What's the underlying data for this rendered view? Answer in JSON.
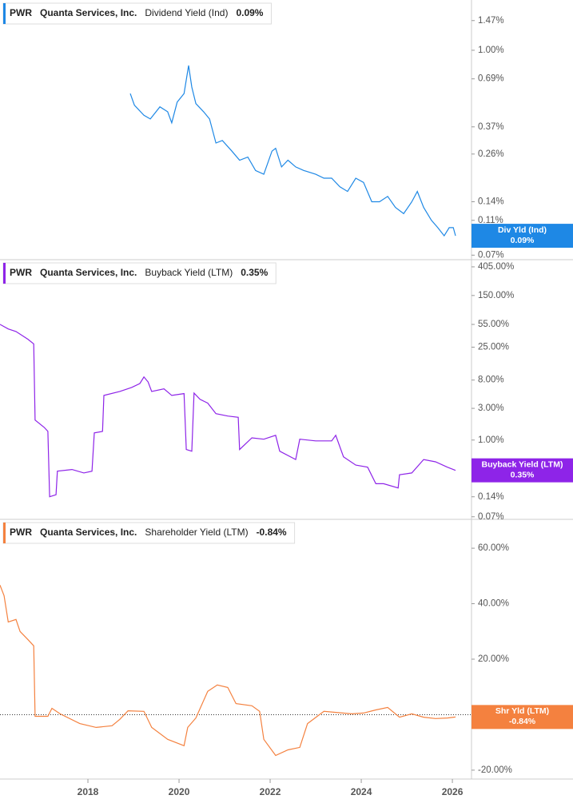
{
  "chart_data": [
    {
      "type": "line",
      "ticker": "PWR",
      "company": "Quanta Services, Inc.",
      "flag_label": "Div Yld (Ind)",
      "current": {
        "value": 0.09,
        "label": "0.09%"
      },
      "log_scale": true,
      "zero_line": false,
      "xlim": [
        2016.07,
        2026.42
      ],
      "ylim": [
        0.066,
        1.92
      ],
      "yticks": [
        {
          "value": 1.47,
          "label": "1.47%"
        },
        {
          "value": 1.0,
          "label": "1.00%"
        },
        {
          "value": 0.69,
          "label": "0.69%"
        },
        {
          "value": 0.37,
          "label": "0.37%"
        },
        {
          "value": 0.26,
          "label": "0.26%"
        },
        {
          "value": 0.14,
          "label": "0.14%"
        },
        {
          "value": 0.11,
          "label": "0.11%"
        },
        {
          "value": 0.07,
          "label": "0.07%"
        }
      ],
      "x": [
        2018.93,
        2019.02,
        2019.23,
        2019.37,
        2019.58,
        2019.75,
        2019.84,
        2019.96,
        2020.11,
        2020.21,
        2020.28,
        2020.37,
        2020.54,
        2020.67,
        2020.81,
        2020.95,
        2021.16,
        2021.33,
        2021.51,
        2021.68,
        2021.86,
        2022.04,
        2022.12,
        2022.25,
        2022.39,
        2022.56,
        2022.74,
        2023.0,
        2023.18,
        2023.35,
        2023.53,
        2023.7,
        2023.88,
        2024.05,
        2024.23,
        2024.4,
        2024.58,
        2024.75,
        2024.93,
        2025.11,
        2025.23,
        2025.37,
        2025.54,
        2025.68,
        2025.82,
        2025.93,
        2026.02,
        2026.07
      ],
      "series": [
        {
          "name": "Dividend Yield (Ind)",
          "color": "#1e88e5",
          "values": [
            0.57,
            0.49,
            0.43,
            0.41,
            0.48,
            0.45,
            0.39,
            0.51,
            0.57,
            0.82,
            0.62,
            0.5,
            0.45,
            0.41,
            0.3,
            0.31,
            0.27,
            0.24,
            0.25,
            0.21,
            0.2,
            0.27,
            0.28,
            0.22,
            0.24,
            0.22,
            0.21,
            0.2,
            0.19,
            0.19,
            0.17,
            0.16,
            0.19,
            0.18,
            0.14,
            0.14,
            0.15,
            0.13,
            0.12,
            0.14,
            0.16,
            0.13,
            0.11,
            0.1,
            0.09,
            0.1,
            0.1,
            0.09
          ]
        }
      ]
    },
    {
      "type": "line",
      "ticker": "PWR",
      "company": "Quanta Services, Inc.",
      "flag_label": "Buyback Yield (LTM)",
      "current": {
        "value": 0.35,
        "label": "0.35%"
      },
      "log_scale": true,
      "zero_line": false,
      "xlim": [
        2016.07,
        2026.42
      ],
      "ylim": [
        0.064,
        519
      ],
      "yticks": [
        {
          "value": 405,
          "label": "405.00%"
        },
        {
          "value": 150,
          "label": "150.00%"
        },
        {
          "value": 55,
          "label": "55.00%"
        },
        {
          "value": 25,
          "label": "25.00%"
        },
        {
          "value": 8,
          "label": "8.00%"
        },
        {
          "value": 3,
          "label": "3.00%"
        },
        {
          "value": 1,
          "label": "1.00%"
        },
        {
          "value": 0.14,
          "label": "0.14%"
        },
        {
          "value": 0.07,
          "label": "0.07%"
        }
      ],
      "x": [
        2016.07,
        2016.25,
        2016.42,
        2016.68,
        2016.81,
        2016.84,
        2017.04,
        2017.12,
        2017.16,
        2017.3,
        2017.33,
        2017.65,
        2017.91,
        2018.09,
        2018.14,
        2018.32,
        2018.35,
        2018.7,
        2018.96,
        2019.14,
        2019.23,
        2019.32,
        2019.4,
        2019.67,
        2019.84,
        2020.11,
        2020.16,
        2020.28,
        2020.33,
        2020.46,
        2020.63,
        2020.81,
        2021.07,
        2021.3,
        2021.33,
        2021.6,
        2021.86,
        2022.12,
        2022.21,
        2022.56,
        2022.65,
        2023.0,
        2023.35,
        2023.44,
        2023.61,
        2023.88,
        2024.14,
        2024.32,
        2024.49,
        2024.81,
        2024.84,
        2025.11,
        2025.37,
        2025.63,
        2025.89,
        2026.07
      ],
      "series": [
        {
          "name": "Buyback Yield (LTM)",
          "color": "#8e24e8",
          "values": [
            55,
            47,
            43,
            33,
            28,
            2.0,
            1.55,
            1.35,
            0.14,
            0.15,
            0.34,
            0.36,
            0.32,
            0.34,
            1.28,
            1.35,
            4.7,
            5.4,
            6.2,
            7.1,
            8.9,
            7.5,
            5.4,
            5.9,
            4.7,
            5.0,
            0.72,
            0.68,
            5.1,
            4.1,
            3.6,
            2.5,
            2.3,
            2.2,
            0.72,
            1.08,
            1.03,
            1.18,
            0.68,
            0.51,
            1.03,
            0.97,
            0.97,
            1.18,
            0.56,
            0.42,
            0.39,
            0.22,
            0.22,
            0.19,
            0.3,
            0.32,
            0.51,
            0.47,
            0.39,
            0.35
          ]
        }
      ]
    },
    {
      "type": "line",
      "ticker": "PWR",
      "company": "Quanta Services, Inc.",
      "flag_label": "Shr Yld (LTM)",
      "current": {
        "value": -0.84,
        "label": "-0.84%"
      },
      "log_scale": false,
      "zero_line": true,
      "xlim": [
        2016.07,
        2026.42
      ],
      "ylim": [
        -23.2,
        70.4
      ],
      "xticks": [
        2018,
        2020,
        2022,
        2024,
        2026
      ],
      "yticks": [
        {
          "value": 60,
          "label": "60.00%"
        },
        {
          "value": 40,
          "label": "40.00%"
        },
        {
          "value": 20,
          "label": "20.00%"
        },
        {
          "value": -20,
          "label": "-20.00%"
        }
      ],
      "x": [
        2016.07,
        2016.16,
        2016.25,
        2016.42,
        2016.51,
        2016.68,
        2016.81,
        2016.84,
        2017.12,
        2017.21,
        2017.39,
        2017.82,
        2018.18,
        2018.53,
        2018.7,
        2018.88,
        2019.23,
        2019.4,
        2019.75,
        2020.11,
        2020.19,
        2020.37,
        2020.63,
        2020.84,
        2021.07,
        2021.25,
        2021.6,
        2021.77,
        2021.86,
        2022.12,
        2022.39,
        2022.65,
        2022.82,
        2023.18,
        2023.79,
        2024.05,
        2024.32,
        2024.58,
        2024.84,
        2025.11,
        2025.37,
        2025.63,
        2025.89,
        2026.07
      ],
      "series": [
        {
          "name": "Shareholder Yield (LTM)",
          "color": "#f4813f",
          "values": [
            46.7,
            42.9,
            33.4,
            34.3,
            30.0,
            27.1,
            24.8,
            -0.6,
            -0.6,
            2.3,
            0.3,
            -3.2,
            -4.6,
            -4.0,
            -1.7,
            1.4,
            1.2,
            -4.6,
            -8.9,
            -11.2,
            -4.6,
            -1.2,
            8.4,
            10.7,
            9.8,
            4.0,
            3.2,
            1.2,
            -8.9,
            -14.7,
            -12.7,
            -11.8,
            -3.2,
            1.2,
            0.3,
            0.6,
            1.7,
            2.6,
            -0.9,
            0.3,
            -0.9,
            -1.4,
            -1.2,
            -0.84
          ]
        }
      ]
    }
  ]
}
